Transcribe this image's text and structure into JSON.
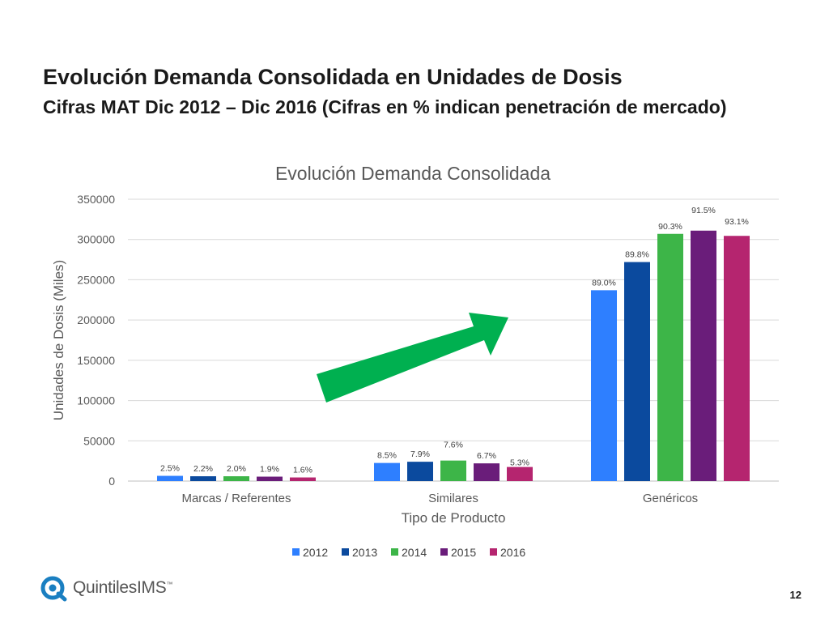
{
  "slide": {
    "title": "Evolución Demanda Consolidada en Unidades de Dosis",
    "subtitle": "Cifras MAT Dic 2012 – Dic 2016 (Cifras en % indican penetración de mercado)",
    "logo_text": "QuintilesIMS",
    "logo_mark": "™",
    "page_number": "12"
  },
  "chart_data": {
    "type": "bar",
    "title": "Evolución Demanda Consolidada",
    "xlabel": "Tipo de Producto",
    "ylabel": "Unidades de Dosis (Miles)",
    "categories": [
      "Marcas / Referentes",
      "Similares",
      "Genéricos"
    ],
    "ylim": [
      0,
      350000
    ],
    "yticks": [
      0,
      50000,
      100000,
      150000,
      200000,
      250000,
      300000,
      350000
    ],
    "grid": true,
    "legend_position": "bottom",
    "series": [
      {
        "name": "2012",
        "color": "#2e7fff",
        "values": [
          6500,
          22500,
          237000
        ],
        "labels": [
          "2.5%",
          "8.5%",
          "89.0%"
        ]
      },
      {
        "name": "2013",
        "color": "#0b4a9e",
        "values": [
          6000,
          24000,
          272000
        ],
        "labels": [
          "2.2%",
          "7.9%",
          "89.8%"
        ]
      },
      {
        "name": "2014",
        "color": "#3db548",
        "values": [
          6000,
          25500,
          307000
        ],
        "labels": [
          "2.0%",
          "7.6%",
          "90.3%"
        ]
      },
      {
        "name": "2015",
        "color": "#6a1d7a",
        "values": [
          5500,
          22000,
          311000
        ],
        "labels": [
          "1.9%",
          "6.7%",
          "91.5%"
        ]
      },
      {
        "name": "2016",
        "color": "#b5256f",
        "values": [
          4500,
          17500,
          304500
        ],
        "labels": [
          "1.6%",
          "5.3%",
          "93.1%"
        ]
      }
    ],
    "annotation": {
      "type": "arrow",
      "color": "#00b050",
      "direction": "up-right"
    }
  }
}
